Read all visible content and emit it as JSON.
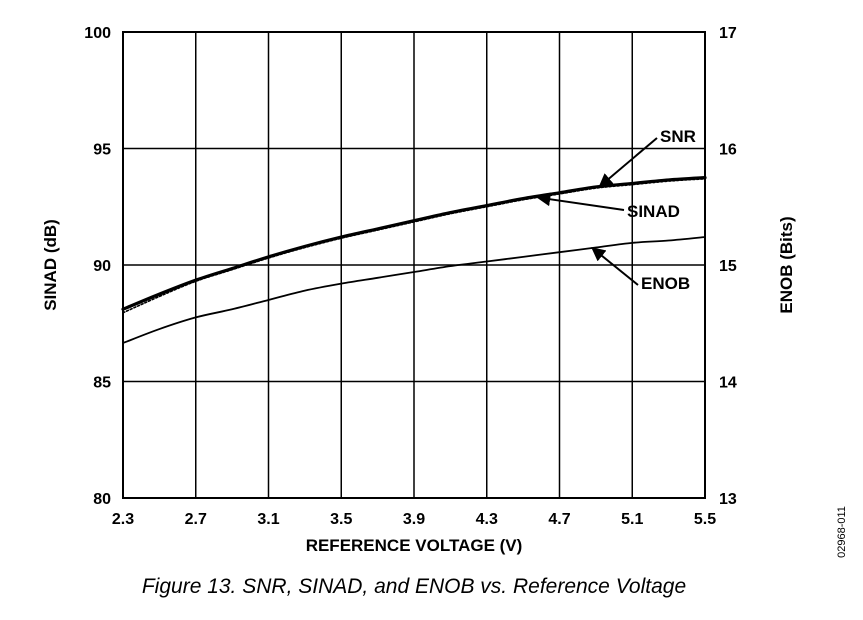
{
  "chart_data": {
    "type": "line",
    "x": [
      2.3,
      2.5,
      2.7,
      2.9,
      3.1,
      3.3,
      3.5,
      3.7,
      3.9,
      4.1,
      4.3,
      4.5,
      4.7,
      4.9,
      5.1,
      5.3,
      5.5
    ],
    "series": [
      {
        "name": "SNR",
        "axis": "left",
        "values": [
          88.1,
          88.75,
          89.35,
          89.85,
          90.35,
          90.8,
          91.2,
          91.55,
          91.9,
          92.25,
          92.55,
          92.85,
          93.1,
          93.35,
          93.5,
          93.65,
          93.75
        ]
      },
      {
        "name": "SINAD",
        "axis": "left",
        "values": [
          87.95,
          88.65,
          89.3,
          89.8,
          90.3,
          90.75,
          91.15,
          91.5,
          91.85,
          92.2,
          92.5,
          92.8,
          93.05,
          93.3,
          93.45,
          93.6,
          93.7
        ]
      },
      {
        "name": "ENOB",
        "axis": "right",
        "values": [
          14.33,
          14.45,
          14.55,
          14.62,
          14.7,
          14.78,
          14.84,
          14.89,
          14.94,
          14.99,
          15.03,
          15.07,
          15.11,
          15.15,
          15.19,
          15.21,
          15.24
        ]
      }
    ],
    "xlabel": "REFERENCE VOLTAGE (V)",
    "ylabel": "SINAD (dB)",
    "y2label": "ENOB (Bits)",
    "xlim": [
      2.3,
      5.5
    ],
    "ylim": [
      80,
      100
    ],
    "y2lim": [
      13,
      17
    ],
    "xticks": [
      "2.3",
      "2.7",
      "3.1",
      "3.5",
      "3.9",
      "4.3",
      "4.7",
      "5.1",
      "5.5"
    ],
    "yticks": [
      "80",
      "85",
      "90",
      "95",
      "100"
    ],
    "y2ticks": [
      "13",
      "14",
      "15",
      "16",
      "17"
    ],
    "grid": true,
    "caption": "Figure 13. SNR, SINAD, and ENOB vs. Reference Voltage",
    "figure_code": "02968-011"
  }
}
